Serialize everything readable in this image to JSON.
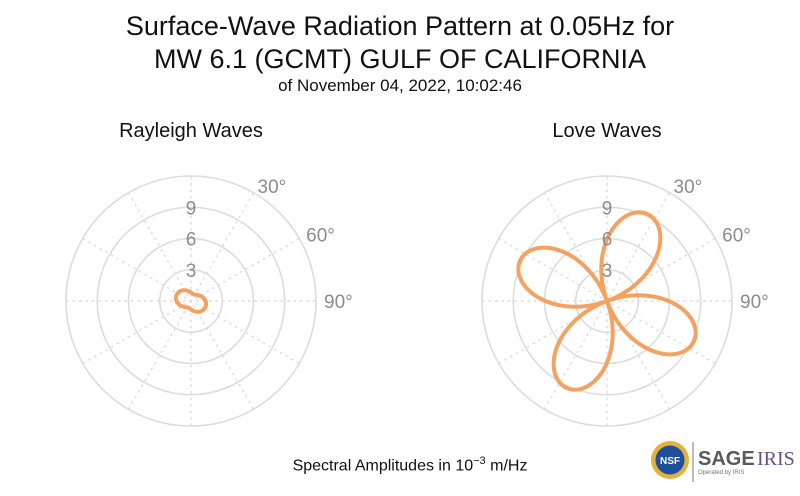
{
  "title_line1": "Surface-Wave Radiation Pattern at 0.05Hz for",
  "title_line2": "MW 6.1 (GCMT) GULF OF CALIFORNIA",
  "title_line3": "of November 04, 2022, 10:02:46",
  "footer": {
    "prefix": "Spectral Amplitudes in 10",
    "exponent": "−3",
    "unit": "m/Hz"
  },
  "logo": {
    "nsf": "NSF",
    "sage": "SAGE",
    "iris": "IRIS",
    "operated": "Operated by IRIS"
  },
  "colors": {
    "pattern": "#f4a261",
    "grid": "#dcdcdc",
    "ticks": "#8c8c8c"
  },
  "chart_data": [
    {
      "type": "polar-line",
      "title": "Rayleigh Waves",
      "radial_ticks": [
        "3",
        "6",
        "9"
      ],
      "radial_tick_values": [
        3,
        6,
        9
      ],
      "angle_ticks": [
        "30°",
        "60°",
        "90°"
      ],
      "angle_tick_values": [
        30,
        60,
        90
      ],
      "rmax": 12,
      "series": [
        {
          "pattern": "two-lobe",
          "peak_amplitude": 1.5,
          "peak_azimuth_deg": 112,
          "min_amplitude": 0.7,
          "min_azimuth_deg": 22
        }
      ]
    },
    {
      "type": "polar-line",
      "title": "Love Waves",
      "radial_ticks": [
        "3",
        "6",
        "9"
      ],
      "radial_tick_values": [
        3,
        6,
        9
      ],
      "angle_ticks": [
        "30°",
        "60°",
        "90°"
      ],
      "angle_tick_values": [
        30,
        60,
        90
      ],
      "rmax": 12,
      "series": [
        {
          "pattern": "four-lobe",
          "peak_amplitude": 9.2,
          "lobe_azimuths_deg": [
            25,
            155,
            205,
            325
          ]
        }
      ]
    }
  ]
}
